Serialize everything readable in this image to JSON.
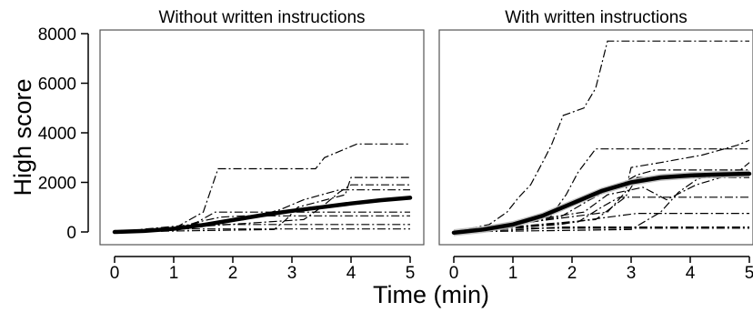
{
  "chart_data": {
    "type": "line",
    "xlabel": "Time (min)",
    "ylabel": "High score",
    "xlim": [
      -0.3,
      5.0
    ],
    "ylim": [
      -350,
      8000
    ],
    "x_ticks": [
      "0",
      "1",
      "2",
      "3",
      "4",
      "5"
    ],
    "y_ticks": [
      "0",
      "2000",
      "4000",
      "6000",
      "8000"
    ],
    "panels": [
      {
        "title": "Without written instructions",
        "fit": {
          "x": [
            0,
            0.5,
            1,
            1.5,
            2,
            2.5,
            3,
            3.5,
            4,
            4.5,
            5
          ],
          "y": [
            0,
            40,
            130,
            280,
            480,
            680,
            850,
            1000,
            1150,
            1280,
            1380
          ],
          "band": 70
        },
        "trajectories": [
          {
            "x": [
              0,
              0.95,
              1.2,
              1.5,
              1.75,
              2.0,
              3.4,
              3.55,
              4.1,
              5.0
            ],
            "y": [
              0,
              60,
              400,
              800,
              2550,
              2550,
              2550,
              3000,
              3550,
              3550
            ]
          },
          {
            "x": [
              0,
              2.7,
              2.9,
              3.1,
              3.9,
              4.0,
              5.0
            ],
            "y": [
              0,
              100,
              500,
              1000,
              1500,
              2200,
              2200
            ]
          },
          {
            "x": [
              0,
              3.2,
              3.5,
              3.8,
              4.0,
              5.0
            ],
            "y": [
              0,
              500,
              1000,
              1600,
              1900,
              1900
            ]
          },
          {
            "x": [
              0,
              2.2,
              2.8,
              3.2,
              3.8,
              5.0
            ],
            "y": [
              0,
              500,
              900,
              1300,
              1700,
              1700
            ]
          },
          {
            "x": [
              0,
              1.0,
              1.4,
              1.7,
              5.0
            ],
            "y": [
              0,
              100,
              400,
              800,
              800
            ]
          },
          {
            "x": [
              0,
              1.2,
              1.5,
              1.8,
              2.2,
              5.0
            ],
            "y": [
              0,
              200,
              450,
              600,
              650,
              650
            ]
          },
          {
            "x": [
              0,
              1.0,
              1.5,
              5.0
            ],
            "y": [
              0,
              50,
              300,
              300
            ]
          },
          {
            "x": [
              0,
              1.0,
              5.0
            ],
            "y": [
              0,
              120,
              120
            ]
          }
        ]
      },
      {
        "title": "With written instructions",
        "fit": {
          "x": [
            0,
            0.5,
            1,
            1.5,
            2,
            2.5,
            3,
            3.5,
            4,
            4.5,
            5
          ],
          "y": [
            -30,
            100,
            300,
            650,
            1150,
            1650,
            2000,
            2200,
            2280,
            2320,
            2350
          ],
          "band": 140
        },
        "trajectories": [
          {
            "x": [
              0,
              0.6,
              0.9,
              1.1,
              1.3,
              1.5,
              1.65,
              1.85,
              2.2,
              2.4,
              2.6,
              5.0
            ],
            "y": [
              0,
              300,
              800,
              1400,
              1900,
              2800,
              3500,
              4700,
              5000,
              5800,
              7700,
              7700
            ]
          },
          {
            "x": [
              0,
              1.6,
              1.9,
              2.1,
              2.4,
              5.0
            ],
            "y": [
              0,
              500,
              1500,
              2400,
              3350,
              3350
            ]
          },
          {
            "x": [
              0,
              2.6,
              2.9,
              3.0,
              3.5,
              4.2,
              4.8,
              5.0
            ],
            "y": [
              0,
              800,
              1600,
              2600,
              2800,
              3100,
              3500,
              3700
            ]
          },
          {
            "x": [
              0,
              1.8,
              2.3,
              2.8,
              3.1,
              3.4,
              5.0
            ],
            "y": [
              0,
              600,
              1300,
              1900,
              2300,
              2500,
              2500
            ]
          },
          {
            "x": [
              0,
              2.4,
              2.9,
              3.1,
              5.0
            ],
            "y": [
              0,
              500,
              1400,
              2200,
              2200
            ]
          },
          {
            "x": [
              0,
              3.0,
              3.5,
              3.8,
              4.1,
              4.3,
              5.0
            ],
            "y": [
              0,
              100,
              800,
              1600,
              2100,
              2300,
              2300
            ]
          },
          {
            "x": [
              0,
              2.1,
              2.5,
              2.8,
              5.0
            ],
            "y": [
              0,
              400,
              1000,
              1400,
              1400
            ]
          },
          {
            "x": [
              0,
              2.2,
              2.6,
              3.2,
              3.6,
              4.1,
              4.8,
              5.0
            ],
            "y": [
              0,
              800,
              1500,
              1800,
              1300,
              1900,
              2400,
              2800
            ]
          },
          {
            "x": [
              0,
              1.8,
              2.3,
              3.1,
              5.0
            ],
            "y": [
              0,
              300,
              500,
              750,
              750
            ]
          },
          {
            "x": [
              0,
              1.2,
              1.8,
              5.0
            ],
            "y": [
              0,
              100,
              200,
              200
            ]
          },
          {
            "x": [
              0,
              1.0,
              5.0
            ],
            "y": [
              0,
              150,
              150
            ]
          }
        ]
      }
    ]
  }
}
